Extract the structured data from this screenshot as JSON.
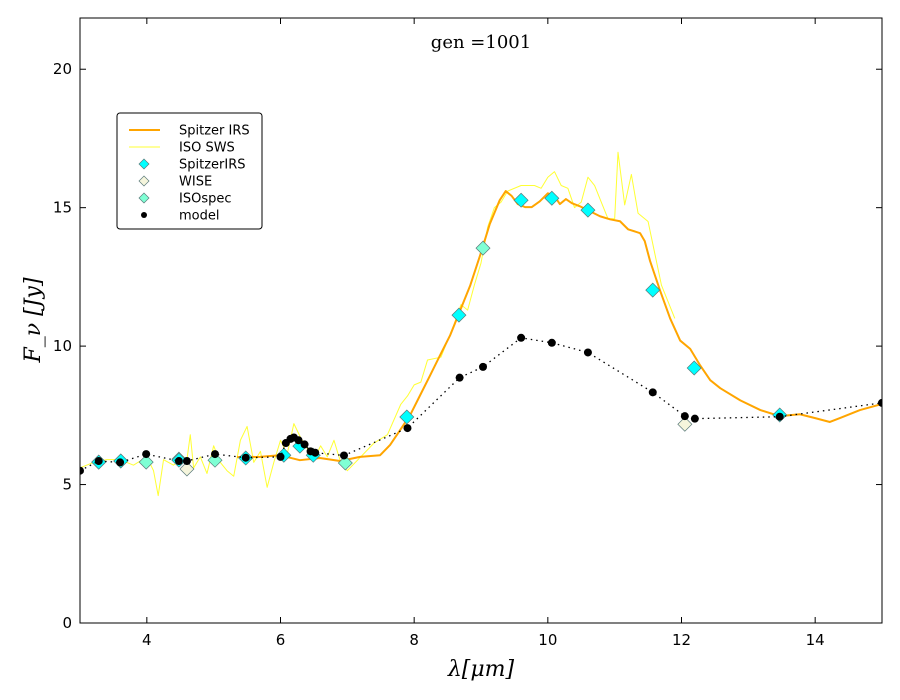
{
  "chart_data": {
    "type": "line",
    "title": "gen =1001",
    "xlabel": "λ[μm]",
    "ylabel": "F_ν [Jy]",
    "ylabel_main": "F",
    "ylabel_sub": "ν",
    "ylabel_unit": "[Jy]",
    "xlim": [
      3,
      15
    ],
    "ylim": [
      0,
      21.85
    ],
    "xticks": [
      4,
      6,
      8,
      10,
      12,
      14
    ],
    "yticks": [
      0,
      5,
      10,
      15,
      20
    ],
    "grid": false,
    "legend_position": "upper-left",
    "colors": {
      "spitzer_line": "#ffa500",
      "iso_line": "#ffff33",
      "spitzer_pts": "#00ffff",
      "wise_pts": "#f5f5dc",
      "iso_pts": "#7fffd4",
      "model": "#000000"
    },
    "series": [
      {
        "name": "Spitzer IRS",
        "kind": "line",
        "x": [
          5.35,
          5.69,
          5.99,
          6.29,
          6.59,
          6.89,
          7.19,
          7.49,
          7.64,
          7.79,
          7.94,
          8.09,
          8.24,
          8.39,
          8.54,
          8.69,
          8.84,
          8.99,
          9.13,
          9.28,
          9.37,
          9.46,
          9.55,
          9.66,
          9.76,
          9.88,
          10.0,
          10.09,
          10.18,
          10.27,
          10.36,
          10.48,
          10.63,
          10.78,
          10.93,
          11.08,
          11.2,
          11.38,
          11.45,
          11.53,
          11.68,
          11.83,
          11.98,
          12.13,
          12.28,
          12.43,
          12.58,
          12.88,
          13.18,
          13.47,
          13.77,
          14.0,
          14.22,
          14.37,
          14.67,
          15.0
        ],
        "y": [
          5.99,
          6.0,
          6.06,
          5.88,
          5.96,
          5.85,
          6.0,
          6.06,
          6.43,
          6.97,
          7.51,
          8.23,
          8.95,
          9.68,
          10.4,
          11.3,
          12.2,
          13.3,
          14.4,
          15.27,
          15.6,
          15.42,
          15.13,
          15.02,
          15.02,
          15.23,
          15.52,
          15.45,
          15.13,
          15.31,
          15.16,
          15.05,
          14.87,
          14.69,
          14.58,
          14.51,
          14.22,
          14.08,
          13.79,
          13.07,
          12.0,
          11.0,
          10.2,
          9.9,
          9.3,
          8.77,
          8.48,
          8.04,
          7.69,
          7.47,
          7.54,
          7.4,
          7.26,
          7.4,
          7.69,
          7.91
        ]
      },
      {
        "name": "ISO SWS",
        "kind": "line",
        "x": [
          3.0,
          3.2,
          3.4,
          3.6,
          3.8,
          4.0,
          4.1,
          4.17,
          4.25,
          4.4,
          4.55,
          4.6,
          4.65,
          4.7,
          4.8,
          4.9,
          5.0,
          5.1,
          5.2,
          5.3,
          5.4,
          5.5,
          5.6,
          5.7,
          5.8,
          5.9,
          6.0,
          6.1,
          6.2,
          6.3,
          6.4,
          6.5,
          6.6,
          6.7,
          6.8,
          6.9,
          7.0,
          7.2,
          7.4,
          7.6,
          7.8,
          7.9,
          8.0,
          8.1,
          8.2,
          8.4,
          8.6,
          8.7,
          8.8,
          8.9,
          9.0,
          9.1,
          9.2,
          9.3,
          9.4,
          9.6,
          9.8,
          9.9,
          10.0,
          10.1,
          10.2,
          10.3,
          10.4,
          10.5,
          10.6,
          10.7,
          10.8,
          10.9,
          11.0,
          11.05,
          11.15,
          11.25,
          11.35,
          11.5,
          11.7,
          11.9
        ],
        "y": [
          5.6,
          5.8,
          5.9,
          5.9,
          5.7,
          6.0,
          5.5,
          4.6,
          5.9,
          5.7,
          6.0,
          5.9,
          6.8,
          5.6,
          6.0,
          5.4,
          6.4,
          5.8,
          5.5,
          5.3,
          6.6,
          7.1,
          5.8,
          6.2,
          4.9,
          5.8,
          6.6,
          6.1,
          7.2,
          6.7,
          6.3,
          5.9,
          6.4,
          6.0,
          6.6,
          5.8,
          5.5,
          6.0,
          6.5,
          6.8,
          7.9,
          8.2,
          8.6,
          8.7,
          9.5,
          9.6,
          10.8,
          11.5,
          11.3,
          12.2,
          13.0,
          14.3,
          15.0,
          15.2,
          15.6,
          15.8,
          15.8,
          15.7,
          16.1,
          16.3,
          15.8,
          15.7,
          15.0,
          15.2,
          16.1,
          15.8,
          15.2,
          14.6,
          14.6,
          17.0,
          15.1,
          16.2,
          14.8,
          14.5,
          12.2,
          11.0
        ]
      },
      {
        "name": "SpitzerIRS",
        "kind": "diamond",
        "x": [
          3.28,
          3.61,
          4.48,
          5.48,
          6.05,
          6.29,
          6.49,
          7.89,
          8.67,
          9.6,
          10.06,
          10.6,
          11.57,
          12.19,
          13.47
        ],
        "y": [
          5.81,
          5.85,
          5.88,
          5.96,
          6.06,
          6.39,
          6.06,
          7.44,
          11.12,
          15.27,
          15.34,
          14.91,
          12.02,
          9.21,
          7.51
        ]
      },
      {
        "name": "WISE",
        "kind": "diamond",
        "x": [
          4.6,
          12.05
        ],
        "y": [
          5.56,
          7.18
        ]
      },
      {
        "name": "ISOspec",
        "kind": "diamond",
        "x": [
          3.28,
          3.61,
          3.99,
          4.48,
          5.02,
          6.97,
          9.03
        ],
        "y": [
          5.81,
          5.85,
          5.81,
          5.92,
          5.88,
          5.78,
          13.54
        ]
      },
      {
        "name": "model",
        "kind": "dotted-points",
        "x": [
          3.0,
          3.28,
          3.6,
          3.99,
          4.48,
          4.6,
          5.02,
          5.48,
          6.0,
          6.08,
          6.15,
          6.2,
          6.27,
          6.36,
          6.45,
          6.52,
          6.95,
          7.9,
          8.68,
          9.03,
          9.6,
          10.06,
          10.6,
          11.57,
          12.05,
          12.2,
          13.47,
          15.0
        ],
        "y": [
          5.5,
          5.85,
          5.8,
          6.1,
          5.85,
          5.85,
          6.1,
          5.97,
          6.0,
          6.5,
          6.65,
          6.7,
          6.6,
          6.45,
          6.2,
          6.15,
          6.05,
          7.04,
          8.86,
          9.25,
          10.3,
          10.12,
          9.77,
          8.33,
          7.47,
          7.38,
          7.45,
          7.95
        ]
      }
    ]
  }
}
